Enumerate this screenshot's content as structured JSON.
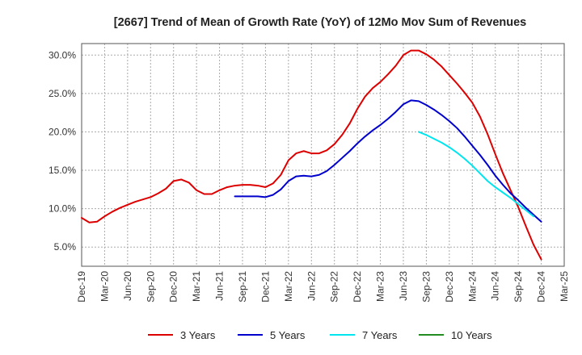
{
  "chart_data": {
    "type": "line",
    "title": "[2667]  Trend of Mean of Growth Rate (YoY) of 12Mo Mov Sum of Revenues",
    "xlabel": "",
    "ylabel": "",
    "ylim": [
      2.5,
      31.5
    ],
    "y_ticks": [
      5,
      10,
      15,
      20,
      25,
      30
    ],
    "y_tick_labels": [
      "5.0%",
      "10.0%",
      "15.0%",
      "20.0%",
      "25.0%",
      "30.0%"
    ],
    "x_tick_labels": [
      "Dec-19",
      "Mar-20",
      "Jun-20",
      "Sep-20",
      "Dec-20",
      "Mar-21",
      "Jun-21",
      "Sep-21",
      "Dec-21",
      "Mar-22",
      "Jun-22",
      "Sep-22",
      "Dec-22",
      "Mar-23",
      "Jun-23",
      "Sep-23",
      "Dec-23",
      "Mar-24",
      "Jun-24",
      "Sep-24",
      "Dec-24",
      "Mar-25"
    ],
    "x_start": "Dec-19",
    "x_unit": "month index from Dec-19",
    "x_range": [
      0,
      63
    ],
    "grid": true,
    "legend_position": "bottom",
    "series": [
      {
        "name": "3 Years",
        "color": "#dd0000",
        "start_index": 0,
        "values": [
          8.8,
          8.2,
          8.3,
          9.0,
          9.6,
          10.1,
          10.5,
          10.9,
          11.2,
          11.5,
          12.0,
          12.6,
          13.6,
          13.8,
          13.4,
          12.4,
          11.9,
          11.9,
          12.4,
          12.8,
          13.0,
          13.1,
          13.1,
          13.0,
          12.8,
          13.3,
          14.4,
          16.3,
          17.2,
          17.5,
          17.2,
          17.2,
          17.6,
          18.4,
          19.6,
          21.1,
          23.0,
          24.6,
          25.7,
          26.5,
          27.5,
          28.6,
          30.0,
          30.6,
          30.6,
          30.1,
          29.4,
          28.5,
          27.4,
          26.3,
          25.1,
          23.8,
          22.0,
          19.7,
          17.1,
          14.6,
          12.4,
          10.2,
          7.7,
          5.3,
          3.4
        ]
      },
      {
        "name": "5 Years",
        "color": "#0000cc",
        "start_index": 20,
        "values": [
          11.6,
          11.6,
          11.6,
          11.6,
          11.5,
          11.8,
          12.5,
          13.6,
          14.2,
          14.3,
          14.2,
          14.4,
          14.9,
          15.7,
          16.6,
          17.5,
          18.5,
          19.4,
          20.2,
          20.9,
          21.7,
          22.6,
          23.6,
          24.1,
          24.0,
          23.5,
          22.9,
          22.2,
          21.4,
          20.5,
          19.4,
          18.2,
          17.0,
          15.7,
          14.3,
          13.1,
          12.0,
          11.1,
          10.1,
          9.2,
          8.3
        ]
      },
      {
        "name": "7 Years",
        "color": "#00e5ee",
        "start_index": 44,
        "values": [
          20.0,
          19.6,
          19.1,
          18.6,
          18.0,
          17.3,
          16.5,
          15.6,
          14.6,
          13.6,
          12.8,
          12.1,
          11.4,
          10.6,
          9.8,
          9.0
        ]
      },
      {
        "name": "10 Years",
        "color": "#228b22",
        "start_index": 0,
        "values": []
      }
    ]
  }
}
